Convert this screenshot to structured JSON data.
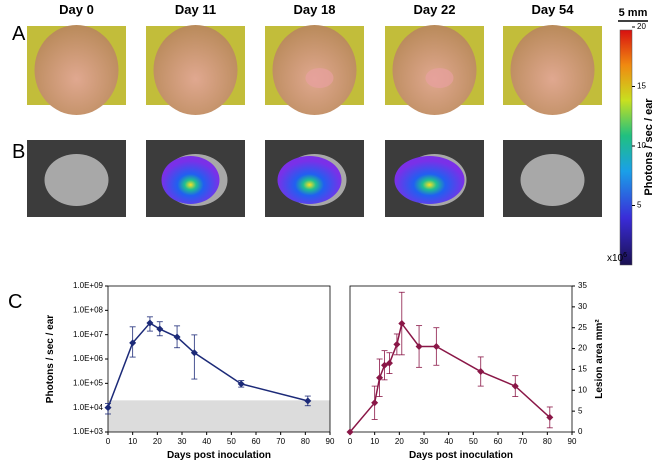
{
  "panels": {
    "a": "A",
    "b": "B",
    "c": "C"
  },
  "days": [
    "Day 0",
    "Day 11",
    "Day 18",
    "Day 22",
    "Day 54"
  ],
  "scale_bar": "5 mm",
  "colorbar": {
    "label": "Photons / sec / ear",
    "lim": [
      0,
      20
    ],
    "ticks": [
      5,
      10,
      15,
      20
    ],
    "multiplier": "x10",
    "exponent": "6"
  },
  "chart_data": [
    {
      "type": "line",
      "x_label": "Days post inoculation",
      "y_label": "Photons / sec / ear",
      "log_y": true,
      "color": "#1c2a78",
      "x": [
        0,
        10,
        17,
        21,
        28,
        35,
        54,
        81
      ],
      "values": [
        10000,
        4600000,
        30000000,
        17000000,
        8000000,
        1800000,
        95000,
        19000
      ],
      "error_low": [
        5500,
        1200000,
        14000000,
        9000000,
        2900000,
        150000,
        70000,
        12000
      ],
      "error_high": [
        15000,
        21000000,
        54000000,
        34000000,
        23000000,
        9800000,
        130000,
        30000
      ],
      "shaded_range": [
        1000,
        20000
      ],
      "xlim": [
        0,
        90
      ],
      "xticks": [
        0,
        10,
        20,
        30,
        40,
        50,
        60,
        70,
        80,
        90
      ],
      "ylim": [
        1000,
        1000000000
      ],
      "yticks": [
        {
          "value": 1000,
          "label": "1.0E+03"
        },
        {
          "value": 10000,
          "label": "1.0E+04"
        },
        {
          "value": 100000,
          "label": "1.0E+05"
        },
        {
          "value": 1000000,
          "label": "1.0E+06"
        },
        {
          "value": 10000000,
          "label": "1.0E+07"
        },
        {
          "value": 100000000,
          "label": "1.0E+08"
        },
        {
          "value": 1000000000,
          "label": "1.0E+09"
        }
      ]
    },
    {
      "type": "line",
      "x_label": "Days post inoculation",
      "y_label": "Lesion area mm²",
      "log_y": false,
      "color": "#8a1747",
      "x": [
        0,
        10,
        12,
        14,
        16,
        19,
        21,
        28,
        35,
        53,
        67,
        81
      ],
      "values": [
        0,
        7,
        13,
        16,
        16.5,
        21,
        26,
        20.5,
        20.5,
        14.5,
        11,
        3.5
      ],
      "errors": [
        null,
        4,
        4.5,
        3.5,
        2.5,
        2.5,
        7.5,
        5,
        4.5,
        3.5,
        2.5,
        2.5
      ],
      "xlim": [
        0,
        90
      ],
      "xticks": [
        0,
        10,
        20,
        30,
        40,
        50,
        60,
        70,
        80,
        90
      ],
      "ylim": [
        0,
        35
      ],
      "yticks": [
        0,
        5,
        10,
        15,
        20,
        25,
        30,
        35
      ]
    }
  ]
}
